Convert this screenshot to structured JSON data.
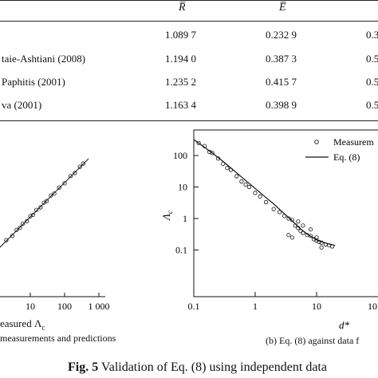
{
  "table": {
    "headers": [
      "R̅",
      "E̅"
    ],
    "rows": [
      {
        "label": "",
        "r": "1.089 7",
        "e": "0.232 9",
        "extra": "0.3"
      },
      {
        "label": "taie-Ashtiani (2008)",
        "r": "1.194 0",
        "e": "0.387 3",
        "extra": "0.5"
      },
      {
        "label": "Paphitis (2001)",
        "r": "1.235 2",
        "e": "0.415 7",
        "extra": "0.5"
      },
      {
        "label": "va (2001)",
        "r": "1.163 4",
        "e": "0.398 9",
        "extra": "0.5"
      }
    ]
  },
  "left_plot": {
    "x_ticks": [
      "10",
      "100",
      "1 000"
    ],
    "xlabel": "easured Λ",
    "xlabel_sub": "c",
    "caption": "measurements and predictions"
  },
  "right_plot": {
    "ylabel": "Λ",
    "ylabel_sub": "c",
    "y_ticks": [
      "100",
      "10",
      "1",
      "0.1"
    ],
    "x_ticks": [
      "0.1",
      "1",
      "10",
      "10"
    ],
    "xlabel": "d*",
    "legend": {
      "measured": "Measurem",
      "eq": "Eq. (8)"
    },
    "caption": "(b) Eq. (8) against data f"
  },
  "figure_caption": {
    "bold": "Fig. 5",
    "text": " Validation of Eq. (8) using independent data"
  },
  "chart_data": [
    {
      "type": "scatter",
      "xlabel": "Measured Λc",
      "ylabel": "",
      "scale": "log-log",
      "x": [
        2,
        3,
        4,
        5,
        6,
        8,
        10,
        12,
        15,
        20,
        25,
        30,
        40,
        50,
        70,
        100,
        150,
        200,
        280,
        350
      ],
      "y": [
        2.1,
        2.8,
        4.2,
        4.8,
        6.3,
        7.5,
        10.5,
        11.5,
        16,
        19,
        26,
        29,
        42,
        48,
        72,
        96,
        155,
        190,
        290,
        360
      ]
    },
    {
      "type": "scatter",
      "xlabel": "d*",
      "ylabel": "Λc",
      "scale": "log-log",
      "xlim": [
        0.1,
        20
      ],
      "ylim": [
        0.06,
        600
      ],
      "series": [
        {
          "name": "Measurem",
          "x": [
            0.12,
            0.15,
            0.18,
            0.2,
            0.25,
            0.3,
            0.35,
            0.4,
            0.5,
            0.6,
            0.7,
            0.8,
            1,
            1.2,
            1.5,
            2,
            2.5,
            3,
            3.5,
            3.5,
            4,
            4,
            4.5,
            5,
            5.5,
            6,
            7,
            8,
            9,
            10,
            11,
            12,
            14,
            16,
            18,
            5,
            6,
            8,
            10,
            12
          ],
          "y": [
            250,
            200,
            130,
            120,
            80,
            55,
            40,
            35,
            22,
            15,
            12,
            10,
            6.5,
            5,
            3.3,
            2,
            1.6,
            1.2,
            1,
            0.3,
            0.9,
            0.25,
            0.6,
            0.5,
            0.4,
            0.35,
            0.3,
            0.28,
            0.22,
            0.2,
            0.18,
            0.17,
            0.15,
            0.14,
            0.13,
            0.8,
            0.6,
            0.45,
            0.25,
            0.12
          ]
        },
        {
          "name": "Eq. (8)",
          "x": [
            0.1,
            0.15,
            0.2,
            0.3,
            0.5,
            0.7,
            1,
            1.5,
            2,
            3,
            4,
            5,
            7,
            10,
            15,
            20
          ],
          "y": [
            320,
            180,
            120,
            65,
            28,
            16,
            9,
            4.6,
            2.9,
            1.4,
            0.85,
            0.55,
            0.32,
            0.21,
            0.16,
            0.14
          ]
        }
      ]
    }
  ]
}
